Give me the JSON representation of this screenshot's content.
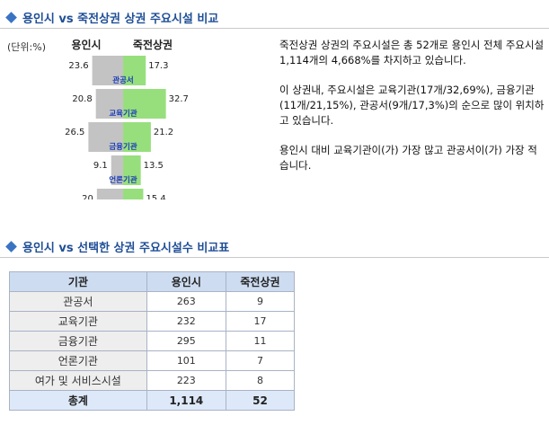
{
  "section1": {
    "title": "용인시 vs 죽전상권 상권 주요시설 비교"
  },
  "unit_label": "(단위:%)",
  "chart_data": {
    "type": "bar",
    "series": [
      {
        "name": "용인시",
        "values": [
          23.6,
          20.8,
          26.5,
          9.1,
          20
        ],
        "color": "#c3c3c3"
      },
      {
        "name": "죽전상권",
        "values": [
          17.3,
          32.7,
          21.2,
          13.5,
          15.4
        ],
        "color": "#97df7c"
      }
    ],
    "categories": [
      "관공서",
      "교육기관",
      "금융기관",
      "언론기관",
      "여가 및 서비스시설"
    ],
    "value_labels_left": [
      "23.6",
      "20.8",
      "26.5",
      "9.1",
      "20"
    ],
    "value_labels_right": [
      "17.3",
      "32.7",
      "21.2",
      "13.5",
      "15.4"
    ],
    "label_color": "#1a3cb8",
    "xlim": [
      0,
      35
    ]
  },
  "description": [
    "죽전상권 상권의 주요시설은 총 52개로 용인시 전체 주요시설 1,114개의 4,668%를 차지하고 있습니다.",
    "이 상권내, 주요시설은 교육기관(17개/32,69%), 금융기관(11개/21,15%), 관공서(9개/17,3%)의 순으로 많이 위치하고 있습니다.",
    "용인시 대비 교육기관이(가) 가장 많고 관공서이(가) 가장 적습니다."
  ],
  "section2": {
    "title": "용인시 vs 선택한 상권 주요시설수 비교표"
  },
  "table": {
    "headers": [
      "기관",
      "용인시",
      "죽전상권"
    ],
    "rows": [
      [
        "관공서",
        "263",
        "9"
      ],
      [
        "교육기관",
        "232",
        "17"
      ],
      [
        "금융기관",
        "295",
        "11"
      ],
      [
        "언론기관",
        "101",
        "7"
      ],
      [
        "여가 및 서비스시설",
        "223",
        "8"
      ]
    ],
    "total": [
      "총계",
      "1,114",
      "52"
    ]
  }
}
